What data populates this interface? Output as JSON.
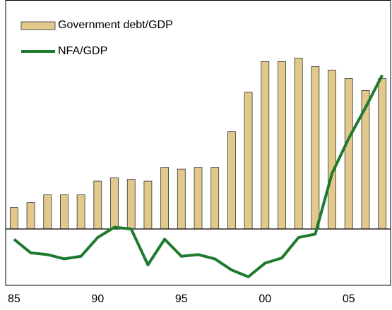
{
  "chart_data": {
    "type": "bar",
    "categories": [
      "85",
      null,
      null,
      null,
      null,
      "90",
      null,
      null,
      null,
      null,
      "95",
      null,
      null,
      null,
      null,
      "00",
      null,
      null,
      null,
      null,
      "05",
      null,
      null
    ],
    "series": [
      {
        "name": "Government debt/GDP",
        "type": "bar",
        "color": "#e3c88c",
        "values": [
          12.5,
          15.4,
          20,
          20,
          20,
          28,
          30,
          29,
          28,
          36,
          35,
          36,
          36,
          57,
          80,
          98,
          98,
          100,
          95,
          93,
          88,
          81,
          88
        ]
      },
      {
        "name": "NFA/GDP",
        "type": "line",
        "color": "#1f7a2e",
        "values": [
          -6,
          -14,
          -15,
          -17.5,
          -16,
          -5,
          1,
          0,
          -21,
          -6,
          -16,
          -15,
          -17.5,
          -24,
          -28,
          -20,
          -17,
          -5,
          -3,
          32.5,
          53,
          71,
          90
        ]
      }
    ],
    "ylim": [
      -33,
      134
    ],
    "legend": "upper left"
  }
}
